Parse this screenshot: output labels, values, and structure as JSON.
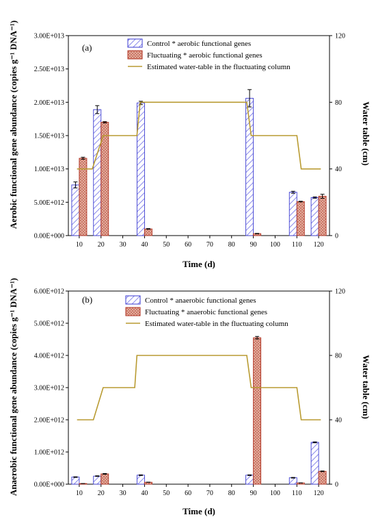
{
  "colors": {
    "control_stroke": "#3a3ad0",
    "control_hatch": "#6a6ae6",
    "fluct_stroke": "#b03020",
    "fluct_fill": "#e8b8a8",
    "water_line": "#b89a30"
  },
  "chart_data": [
    {
      "type": "bar",
      "panel_label": "(a)",
      "xlabel": "Time (d)",
      "ylabel": "Aerobic functional gene abundance (copies g⁻¹ DNA⁻¹)",
      "ylabel_right": "Water table (cm)",
      "x_ticks": [
        10,
        20,
        30,
        40,
        50,
        60,
        70,
        80,
        90,
        100,
        110,
        120
      ],
      "y_ticks": [
        "0.00E+000",
        "5.00E+012",
        "1.00E+013",
        "1.50E+013",
        "2.00E+013",
        "2.50E+013",
        "3.00E+013"
      ],
      "ylim": [
        0,
        30000000000000.0
      ],
      "y2_ticks": [
        "0",
        "40",
        "80",
        "120"
      ],
      "y2lim": [
        0,
        120
      ],
      "x_days": [
        10,
        20,
        40,
        90,
        110,
        120
      ],
      "series": [
        {
          "name": "Control * aerobic functional genes",
          "values": [
            7600000000000.0,
            18900000000000.0,
            19900000000000.0,
            20600000000000.0,
            6500000000000.0,
            5700000000000.0
          ],
          "errors": [
            450000000000.0,
            600000000000.0,
            250000000000.0,
            1300000000000.0,
            150000000000.0,
            100000000000.0
          ]
        },
        {
          "name": "Fluctuating * aerobic functional genes",
          "values": [
            11600000000000.0,
            17000000000000.0,
            1000000000000.0,
            300000000000.0,
            5100000000000.0,
            5900000000000.0
          ],
          "errors": [
            150000000000.0,
            100000000000.0,
            50000000000.0,
            30000000000.0,
            50000000000.0,
            300000000000.0
          ]
        }
      ],
      "water_table": {
        "name": "Estimated water-table in the fluctuating column",
        "x": [
          9,
          15,
          16,
          21,
          36.5,
          38,
          87,
          89,
          110,
          112,
          121
        ],
        "y": [
          40,
          40,
          40,
          60,
          60,
          80,
          80,
          60,
          60,
          40,
          40
        ]
      }
    },
    {
      "type": "bar",
      "panel_label": "(b)",
      "xlabel": "Time (d)",
      "ylabel": "Anaerobic functional gene abundance (copies g⁻¹ DNA⁻¹)",
      "ylabel_right": "Water table (cm)",
      "x_ticks": [
        10,
        20,
        30,
        40,
        50,
        60,
        70,
        80,
        90,
        100,
        110,
        120
      ],
      "y_ticks": [
        "0.00E+000",
        "1.00E+012",
        "2.00E+012",
        "3.00E+012",
        "4.00E+012",
        "5.00E+012",
        "6.00E+012"
      ],
      "ylim": [
        0,
        6000000000000.0
      ],
      "y2_ticks": [
        "0",
        "40",
        "80",
        "120"
      ],
      "y2lim": [
        0,
        120
      ],
      "x_days": [
        10,
        20,
        40,
        90,
        110,
        120
      ],
      "series": [
        {
          "name": "Control * anaerobic functional genes",
          "values": [
            220000000000.0,
            250000000000.0,
            280000000000.0,
            280000000000.0,
            200000000000.0,
            1300000000000.0
          ],
          "errors": [
            10000000000.0,
            10000000000.0,
            10000000000.0,
            10000000000.0,
            10000000000.0,
            15000000000.0
          ]
        },
        {
          "name": "Fluctuating * anaerobic functional genes",
          "values": [
            20000000000.0,
            320000000000.0,
            60000000000.0,
            4550000000000.0,
            40000000000.0,
            400000000000.0
          ],
          "errors": [
            1000000000.0,
            10000000000.0,
            1000000000.0,
            40000000000.0,
            1000000000.0,
            10000000000.0
          ]
        }
      ],
      "water_table": {
        "name": "Estimated water-table in the fluctuating column",
        "x": [
          9,
          15,
          16.5,
          21,
          35.5,
          36.5,
          87,
          89,
          110,
          112,
          121
        ],
        "y": [
          40,
          40,
          40,
          60,
          60,
          80,
          80,
          60,
          60,
          40,
          40
        ]
      }
    }
  ]
}
